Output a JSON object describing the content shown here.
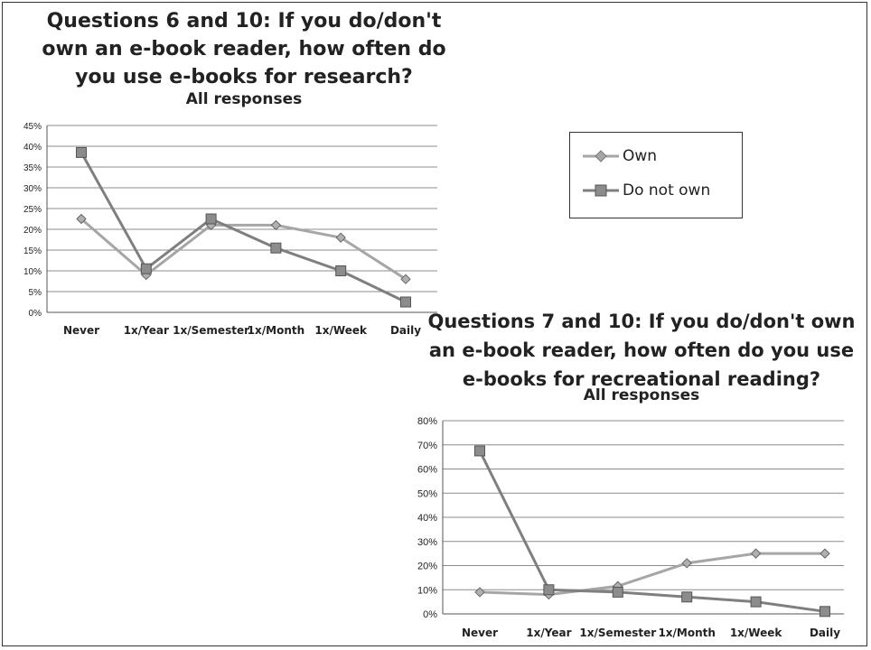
{
  "chart_data": [
    {
      "type": "line",
      "title_lines": [
        "Questions 6 and 10: If you do/don't",
        "own an e-book reader, how often do",
        "you use e-books for research?"
      ],
      "subtitle": "All responses",
      "categories": [
        "Never",
        "1x/Year",
        "1x/Semester",
        "1x/Month",
        "1x/Week",
        "Daily"
      ],
      "yticks": [
        "0%",
        "5%",
        "10%",
        "15%",
        "20%",
        "25%",
        "30%",
        "35%",
        "40%",
        "45%"
      ],
      "ylim": [
        0,
        45
      ],
      "grid": true,
      "series": [
        {
          "name": "Own",
          "marker": "diamond",
          "values": [
            22.5,
            9,
            21,
            21,
            18,
            8
          ]
        },
        {
          "name": "Do not own",
          "marker": "square",
          "values": [
            38.5,
            10.5,
            22.5,
            15.5,
            10,
            2.5
          ]
        }
      ]
    },
    {
      "type": "line",
      "title_lines": [
        "Questions 7 and 10: If you do/don't own",
        "an e-book reader, how often do you use",
        "e-books for recreational reading?"
      ],
      "subtitle": "All responses",
      "categories": [
        "Never",
        "1x/Year",
        "1x/Semester",
        "1x/Month",
        "1x/Week",
        "Daily"
      ],
      "yticks": [
        "0%",
        "10%",
        "20%",
        "30%",
        "40%",
        "50%",
        "60%",
        "70%",
        "80%"
      ],
      "ylim": [
        0,
        80
      ],
      "grid": true,
      "series": [
        {
          "name": "Own",
          "marker": "diamond",
          "values": [
            9,
            8,
            11.5,
            21,
            25,
            25
          ]
        },
        {
          "name": "Do not own",
          "marker": "square",
          "values": [
            67.5,
            10,
            9,
            7,
            5,
            1
          ]
        }
      ]
    }
  ],
  "legend": {
    "placement": "right of top chart",
    "items": [
      {
        "label": "Own",
        "marker": "diamond"
      },
      {
        "label": "Do not own",
        "marker": "square"
      }
    ]
  },
  "colors": {
    "own_line": "#a6a6a6",
    "do_not_own_line": "#7f7f7f",
    "grid": "#8c8c8c",
    "text": "#222222"
  }
}
